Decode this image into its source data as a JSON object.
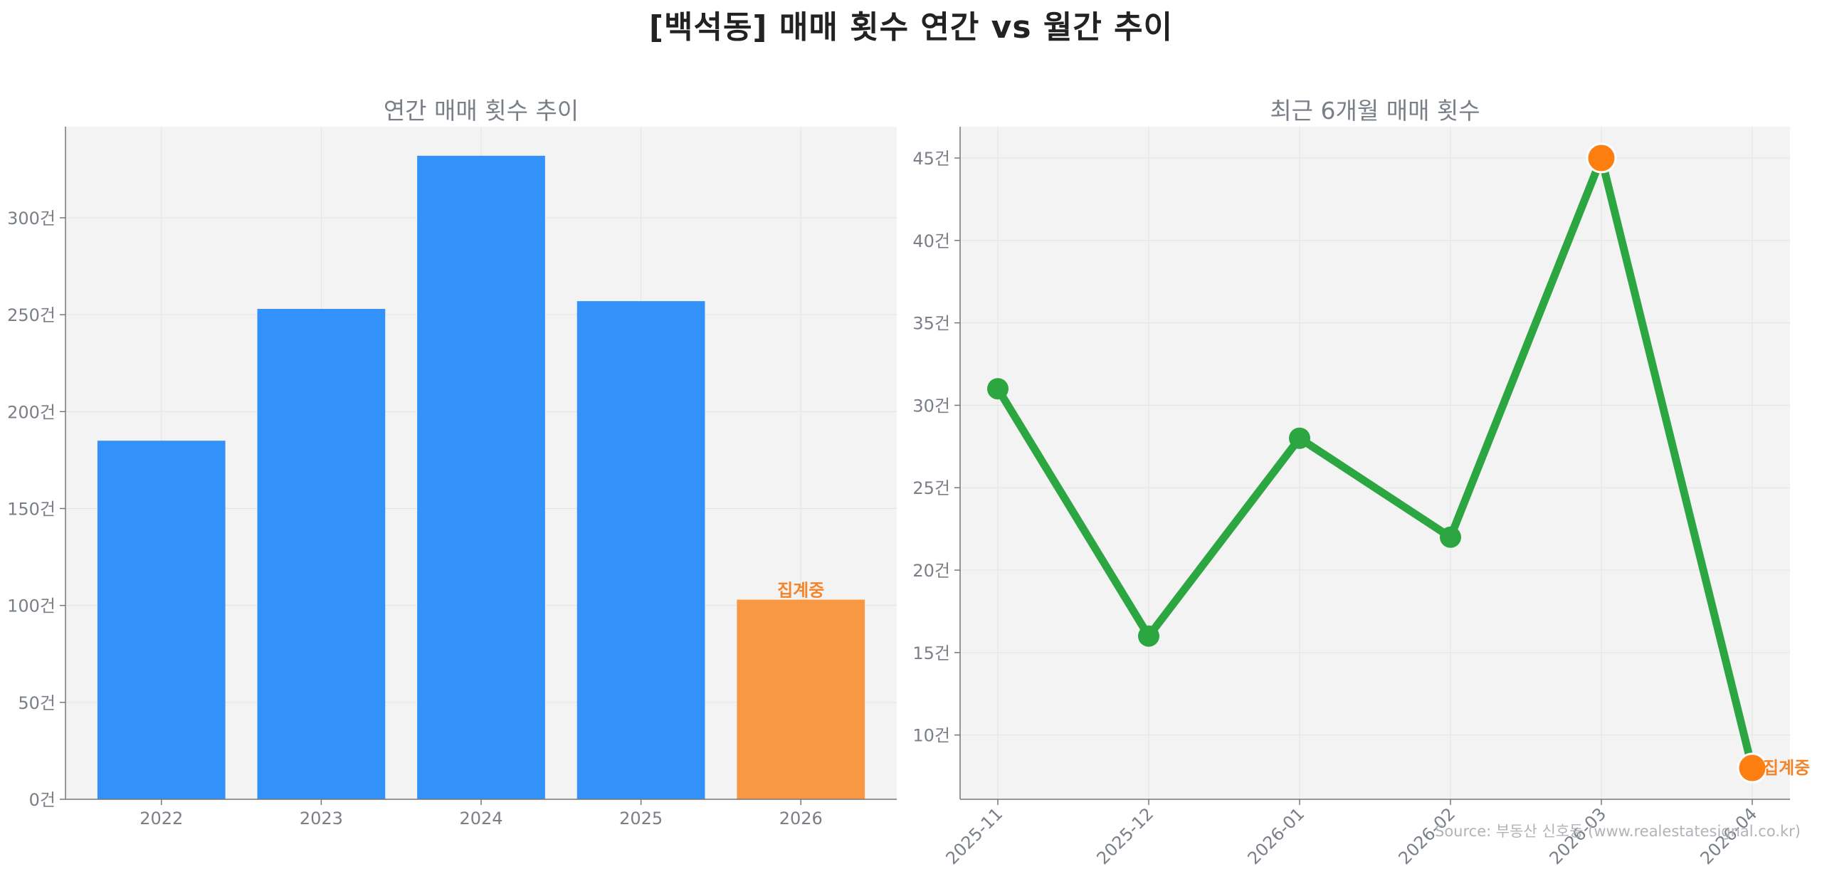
{
  "title": "[백석동] 매매 횟수 연간 vs 월간 추이",
  "source": "Source: 부동산 신호등 (www.realestatesignal.co.kr)",
  "colors": {
    "bar": "#3292fa",
    "bar_current": "#f99843",
    "line": "#2ba640",
    "highlight": "#fd7f12",
    "annotation": "#f4842a",
    "plot_bg": "#f3f3f3",
    "grid": "#e4e4e4",
    "text": "#7a7f87"
  },
  "chart_data": [
    {
      "type": "bar",
      "title": "연간 매매 횟수 추이",
      "categories": [
        "2022",
        "2023",
        "2024",
        "2025",
        "2026"
      ],
      "values": [
        185,
        253,
        332,
        257,
        103
      ],
      "highlight_index": 4,
      "annotation": "집계중",
      "ylim": [
        0,
        347
      ],
      "yticks": [
        0,
        50,
        100,
        150,
        200,
        250,
        300
      ],
      "ytick_suffix": "건",
      "grid": true
    },
    {
      "type": "line",
      "title": "최근 6개월 매매 횟수",
      "categories": [
        "2025-11",
        "2025-12",
        "2026-01",
        "2026-02",
        "2026-03",
        "2026-04"
      ],
      "values": [
        31,
        16,
        28,
        22,
        45,
        8
      ],
      "highlight_indices": [
        4,
        5
      ],
      "annotation": "집계중",
      "annotation_index": 5,
      "ylim": [
        6.1,
        46.9
      ],
      "yticks": [
        10,
        15,
        20,
        25,
        30,
        35,
        40,
        45
      ],
      "ytick_suffix": "건",
      "grid": true
    }
  ]
}
